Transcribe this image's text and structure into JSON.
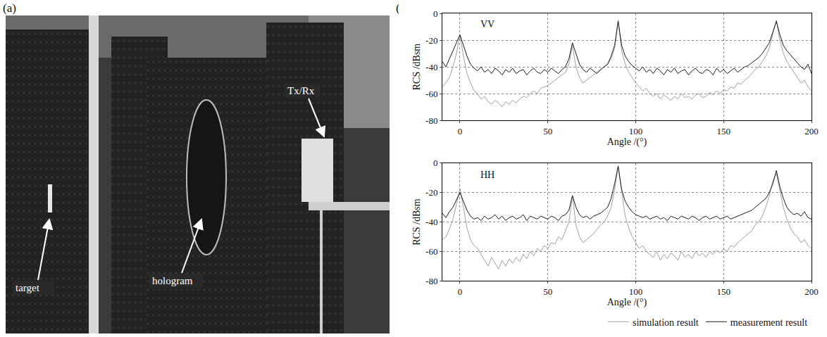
{
  "photo": {
    "label": "(a)",
    "annotations": [
      "target",
      "hologram",
      "Tx/Rx"
    ]
  },
  "panel_label": "(b)",
  "chart_data": [
    {
      "type": "line",
      "annotations": [
        "VV"
      ],
      "x_label": "Angle /(°)",
      "y_label": "RCS /dBsm",
      "xlim": [
        -10,
        200
      ],
      "xticks": [
        0,
        50,
        100,
        150,
        200
      ],
      "ylim": [
        -80,
        0
      ],
      "yticks": [
        -80,
        -60,
        -40,
        -20,
        0
      ],
      "grid": true,
      "x": [
        -10,
        -8,
        -6,
        -4,
        -2,
        0,
        2,
        4,
        6,
        8,
        10,
        12,
        14,
        16,
        18,
        20,
        22,
        24,
        26,
        28,
        30,
        32,
        34,
        36,
        38,
        40,
        42,
        44,
        46,
        48,
        50,
        52,
        54,
        56,
        58,
        60,
        62,
        64,
        66,
        68,
        70,
        72,
        74,
        76,
        78,
        80,
        82,
        84,
        86,
        88,
        90,
        92,
        94,
        96,
        98,
        100,
        102,
        104,
        106,
        108,
        110,
        112,
        114,
        116,
        118,
        120,
        122,
        124,
        126,
        128,
        130,
        132,
        134,
        136,
        138,
        140,
        142,
        144,
        146,
        148,
        150,
        152,
        154,
        156,
        158,
        160,
        162,
        164,
        166,
        168,
        170,
        172,
        174,
        176,
        178,
        180,
        182,
        184,
        186,
        188,
        190,
        192,
        194,
        196,
        198,
        200
      ],
      "series": [
        {
          "name": "simulation result",
          "color": "#a0a0a0",
          "values": [
            -55,
            -52,
            -48,
            -40,
            -30,
            -16,
            -32,
            -45,
            -52,
            -58,
            -60,
            -64,
            -62,
            -66,
            -68,
            -65,
            -67,
            -70,
            -66,
            -68,
            -65,
            -67,
            -64,
            -62,
            -63,
            -60,
            -58,
            -60,
            -56,
            -55,
            -54,
            -52,
            -50,
            -48,
            -46,
            -44,
            -38,
            -24,
            -40,
            -48,
            -52,
            -50,
            -48,
            -46,
            -44,
            -42,
            -40,
            -38,
            -34,
            -26,
            -5,
            -28,
            -38,
            -44,
            -48,
            -52,
            -55,
            -58,
            -56,
            -60,
            -62,
            -60,
            -64,
            -61,
            -63,
            -65,
            -62,
            -64,
            -60,
            -63,
            -62,
            -64,
            -61,
            -60,
            -63,
            -62,
            -59,
            -61,
            -58,
            -60,
            -57,
            -58,
            -55,
            -56,
            -52,
            -53,
            -50,
            -48,
            -45,
            -42,
            -40,
            -36,
            -32,
            -26,
            -16,
            -5,
            -20,
            -30,
            -36,
            -40,
            -44,
            -48,
            -52,
            -50,
            -55,
            -58
          ]
        },
        {
          "name": "measurement result",
          "color": "#1a1a1a",
          "values": [
            -36,
            -40,
            -34,
            -28,
            -22,
            -16,
            -24,
            -32,
            -38,
            -41,
            -43,
            -40,
            -44,
            -42,
            -45,
            -41,
            -43,
            -46,
            -42,
            -44,
            -41,
            -45,
            -43,
            -42,
            -46,
            -43,
            -41,
            -44,
            -45,
            -42,
            -44,
            -41,
            -43,
            -45,
            -42,
            -40,
            -34,
            -22,
            -30,
            -38,
            -42,
            -44,
            -41,
            -43,
            -45,
            -42,
            -40,
            -38,
            -32,
            -24,
            -6,
            -24,
            -32,
            -36,
            -39,
            -41,
            -43,
            -40,
            -44,
            -42,
            -45,
            -41,
            -43,
            -46,
            -42,
            -44,
            -41,
            -45,
            -43,
            -42,
            -46,
            -43,
            -41,
            -44,
            -45,
            -42,
            -43,
            -46,
            -41,
            -44,
            -42,
            -45,
            -43,
            -41,
            -44,
            -42,
            -40,
            -39,
            -37,
            -35,
            -33,
            -30,
            -26,
            -22,
            -14,
            -6,
            -16,
            -24,
            -28,
            -31,
            -34,
            -37,
            -40,
            -42,
            -38,
            -45
          ]
        }
      ]
    },
    {
      "type": "line",
      "annotations": [
        "HH"
      ],
      "x_label": "Angle /(°)",
      "y_label": "RCS /dBsm",
      "xlim": [
        -10,
        200
      ],
      "xticks": [
        0,
        50,
        100,
        150,
        200
      ],
      "ylim": [
        -80,
        0
      ],
      "yticks": [
        -80,
        -60,
        -40,
        -20,
        0
      ],
      "grid": true,
      "legend": "bottom",
      "x": [
        -10,
        -8,
        -6,
        -4,
        -2,
        0,
        2,
        4,
        6,
        8,
        10,
        12,
        14,
        16,
        18,
        20,
        22,
        24,
        26,
        28,
        30,
        32,
        34,
        36,
        38,
        40,
        42,
        44,
        46,
        48,
        50,
        52,
        54,
        56,
        58,
        60,
        62,
        64,
        66,
        68,
        70,
        72,
        74,
        76,
        78,
        80,
        82,
        84,
        86,
        88,
        90,
        92,
        94,
        96,
        98,
        100,
        102,
        104,
        106,
        108,
        110,
        112,
        114,
        116,
        118,
        120,
        122,
        124,
        126,
        128,
        130,
        132,
        134,
        136,
        138,
        140,
        142,
        144,
        146,
        148,
        150,
        152,
        154,
        156,
        158,
        160,
        162,
        164,
        166,
        168,
        170,
        172,
        174,
        176,
        178,
        180,
        182,
        184,
        186,
        188,
        190,
        192,
        194,
        196,
        198,
        200
      ],
      "series": [
        {
          "name": "simulation result",
          "color": "#a0a0a0",
          "values": [
            -52,
            -50,
            -45,
            -38,
            -28,
            -17,
            -30,
            -44,
            -52,
            -56,
            -58,
            -62,
            -66,
            -70,
            -64,
            -68,
            -72,
            -66,
            -70,
            -65,
            -68,
            -64,
            -67,
            -62,
            -65,
            -60,
            -63,
            -58,
            -60,
            -56,
            -58,
            -54,
            -55,
            -50,
            -52,
            -46,
            -40,
            -22,
            -42,
            -50,
            -54,
            -52,
            -50,
            -48,
            -45,
            -42,
            -40,
            -36,
            -30,
            -18,
            -2,
            -20,
            -36,
            -44,
            -50,
            -54,
            -58,
            -56,
            -60,
            -62,
            -64,
            -60,
            -66,
            -62,
            -65,
            -61,
            -63,
            -66,
            -60,
            -64,
            -62,
            -65,
            -60,
            -63,
            -61,
            -64,
            -60,
            -62,
            -59,
            -61,
            -58,
            -60,
            -56,
            -57,
            -54,
            -52,
            -50,
            -48,
            -46,
            -42,
            -40,
            -36,
            -30,
            -22,
            -12,
            -7,
            -18,
            -30,
            -38,
            -44,
            -48,
            -50,
            -54,
            -52,
            -56,
            -58
          ]
        },
        {
          "name": "measurement result",
          "color": "#1a1a1a",
          "values": [
            -34,
            -37,
            -33,
            -30,
            -25,
            -20,
            -26,
            -32,
            -36,
            -38,
            -37,
            -39,
            -36,
            -38,
            -37,
            -35,
            -38,
            -36,
            -39,
            -37,
            -36,
            -38,
            -37,
            -35,
            -39,
            -36,
            -37,
            -38,
            -36,
            -37,
            -38,
            -36,
            -37,
            -39,
            -36,
            -35,
            -32,
            -22,
            -30,
            -35,
            -37,
            -36,
            -38,
            -36,
            -35,
            -34,
            -32,
            -30,
            -24,
            -14,
            -2,
            -18,
            -26,
            -30,
            -33,
            -35,
            -36,
            -37,
            -36,
            -38,
            -37,
            -36,
            -38,
            -37,
            -39,
            -36,
            -37,
            -38,
            -36,
            -37,
            -38,
            -36,
            -37,
            -39,
            -37,
            -36,
            -38,
            -37,
            -36,
            -38,
            -37,
            -36,
            -38,
            -37,
            -36,
            -35,
            -34,
            -33,
            -32,
            -30,
            -28,
            -26,
            -24,
            -20,
            -14,
            -5,
            -16,
            -24,
            -30,
            -33,
            -35,
            -34,
            -36,
            -33,
            -37,
            -38
          ]
        }
      ]
    }
  ]
}
